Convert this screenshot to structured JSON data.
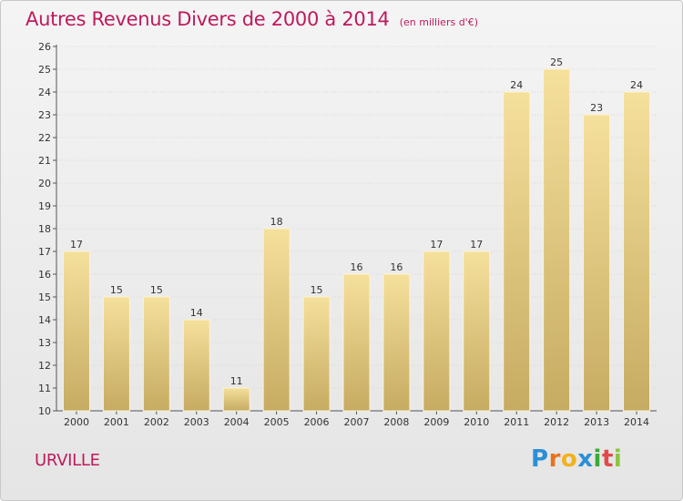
{
  "chart_data": {
    "type": "bar",
    "title": "Autres Revenus Divers de 2000 à 2014",
    "subtitle": "(en milliers d'€)",
    "categories": [
      "2000",
      "2001",
      "2002",
      "2003",
      "2004",
      "2005",
      "2006",
      "2007",
      "2008",
      "2009",
      "2010",
      "2011",
      "2012",
      "2013",
      "2014"
    ],
    "values": [
      17,
      15,
      15,
      14,
      11,
      18,
      15,
      16,
      16,
      17,
      17,
      24,
      25,
      23,
      24
    ],
    "ylim": [
      10,
      26
    ],
    "yticks": [
      "10",
      "11",
      "12",
      "13",
      "14",
      "15",
      "16",
      "17",
      "18",
      "19",
      "20",
      "21",
      "22",
      "23",
      "24",
      "25",
      "26"
    ],
    "xlabel": "",
    "ylabel": "",
    "grid": true,
    "bar_color_top": "#f5e09c",
    "bar_color_bottom": "#c6ab62"
  },
  "place_name": "URVILLE",
  "brand": {
    "letters": [
      "P",
      "r",
      "o",
      "x",
      "i",
      "t",
      "i"
    ],
    "colors": [
      "#2b8fd6",
      "#e8731c",
      "#f2b21c",
      "#2b8fd6",
      "#3aaa35",
      "#e04a4a",
      "#8bc53f"
    ]
  }
}
